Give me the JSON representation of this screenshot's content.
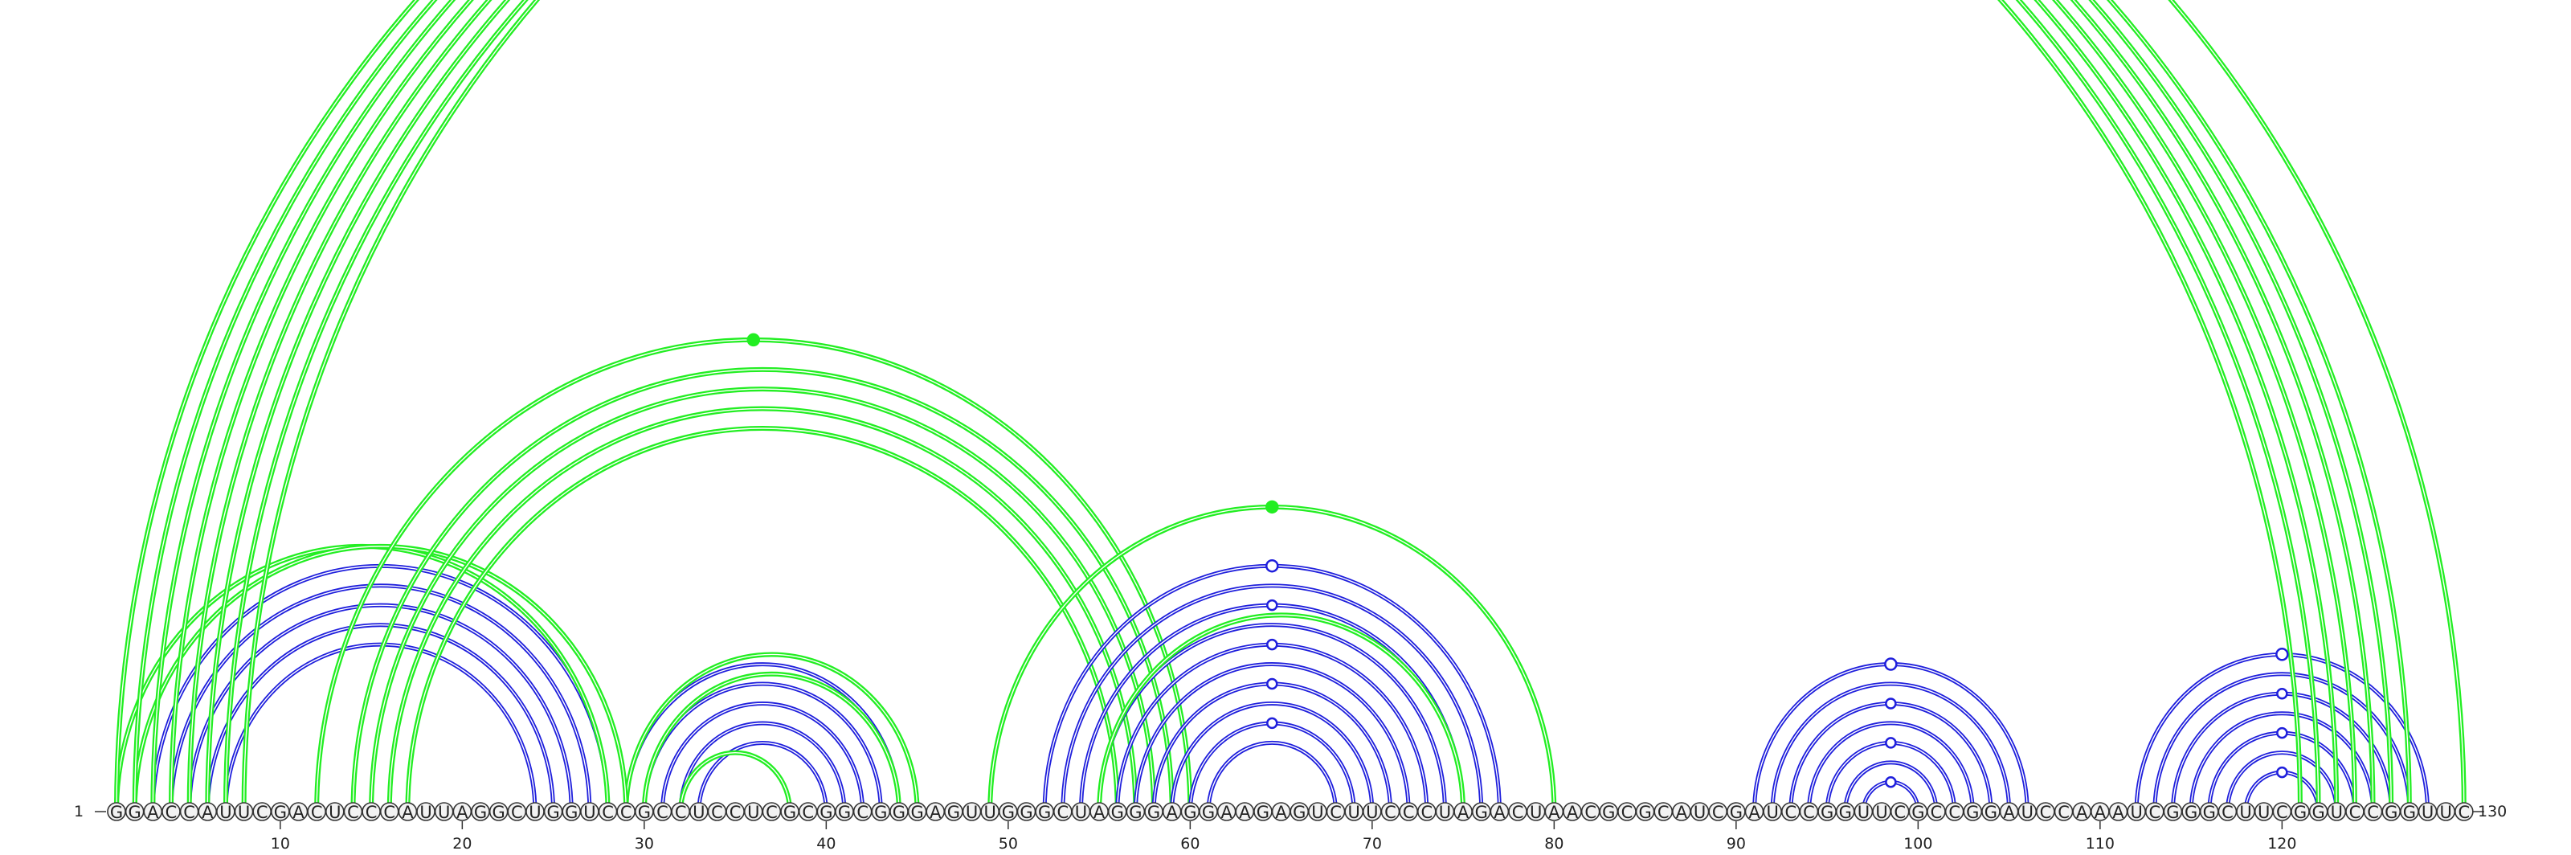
{
  "sequence": "GGACCAUUCGACUCCCAUUAGGCUGGUCCGCCUCCUCGCGGCGGGAGUUGGGCUAGGGAGGAAGAGUCUUCCCUAGACUAACGCGCAUCGAUCCGGUUCGCCGGAUCCAAAUCGGGCUUCGGUCCGGUUC",
  "start_label": "1",
  "end_label": "130",
  "tick_labels": [
    "10",
    "20",
    "30",
    "40",
    "50",
    "60",
    "70",
    "80",
    "90",
    "100",
    "110",
    "120"
  ],
  "colors": {
    "blue": "#1f1fdc",
    "green": "#22ee22"
  },
  "arc_groups": [
    {
      "id": "blue-stem-1",
      "color": "blue",
      "pairs": [
        [
          3,
          28
        ],
        [
          4,
          27
        ],
        [
          5,
          26
        ],
        [
          6,
          25
        ],
        [
          7,
          24
        ]
      ],
      "marker": "none"
    },
    {
      "id": "blue-stem-2",
      "color": "blue",
      "pairs": [
        [
          29,
          44
        ],
        [
          30,
          43
        ],
        [
          31,
          42
        ],
        [
          32,
          41
        ],
        [
          33,
          40
        ]
      ],
      "marker": "none"
    },
    {
      "id": "green-stem-2",
      "color": "green",
      "pairs": [
        [
          29,
          45
        ],
        [
          30,
          44
        ],
        [
          32,
          38
        ]
      ],
      "marker": "none"
    },
    {
      "id": "green-stem-1",
      "color": "green",
      "pairs": [
        [
          1,
          28
        ],
        [
          2,
          29
        ]
      ],
      "marker": "none"
    },
    {
      "id": "green-long-1",
      "color": "green",
      "pairs": [
        [
          12,
          60
        ],
        [
          14,
          59
        ],
        [
          15,
          58
        ],
        [
          16,
          57
        ],
        [
          17,
          56
        ]
      ],
      "marker": "filled"
    },
    {
      "id": "blue-stem-3",
      "color": "blue",
      "pairs": [
        [
          52,
          77
        ],
        [
          53,
          76
        ],
        [
          54,
          75
        ],
        [
          55,
          74
        ],
        [
          56,
          73
        ],
        [
          57,
          72
        ],
        [
          58,
          71
        ],
        [
          59,
          70
        ],
        [
          60,
          69
        ],
        [
          61,
          68
        ]
      ],
      "marker": "hollow"
    },
    {
      "id": "green-stem-3",
      "color": "green",
      "pairs": [
        [
          49,
          80
        ],
        [
          55,
          75
        ]
      ],
      "marker": "filled"
    },
    {
      "id": "blue-stem-4",
      "color": "blue",
      "pairs": [
        [
          91,
          106
        ],
        [
          92,
          105
        ],
        [
          93,
          104
        ],
        [
          94,
          103
        ],
        [
          95,
          102
        ],
        [
          96,
          101
        ],
        [
          97,
          100
        ]
      ],
      "marker": "hollow"
    },
    {
      "id": "blue-stem-5",
      "color": "blue",
      "pairs": [
        [
          112,
          128
        ],
        [
          113,
          127
        ],
        [
          114,
          126
        ],
        [
          115,
          125
        ],
        [
          116,
          124
        ],
        [
          117,
          123
        ],
        [
          118,
          122
        ]
      ],
      "marker": "hollow"
    },
    {
      "id": "green-long-2",
      "color": "green",
      "pairs": [
        [
          1,
          121
        ],
        [
          2,
          122
        ],
        [
          3,
          123
        ],
        [
          4,
          124
        ],
        [
          5,
          125
        ],
        [
          6,
          126
        ],
        [
          7,
          127
        ],
        [
          8,
          130
        ]
      ],
      "marker": "hollow"
    }
  ]
}
